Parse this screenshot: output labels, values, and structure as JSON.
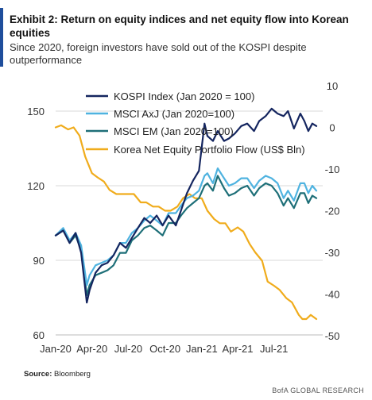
{
  "header": {
    "title": "Exhibit 2: Return on equity indices and net equity flow into Korean equities",
    "subtitle": "Since 2020, foreign investors have sold out of the KOSPI despite outperformance"
  },
  "footer": {
    "source_label": "Source:",
    "source_value": "Bloomberg",
    "brand": "BofA GLOBAL RESEARCH"
  },
  "colors": {
    "kospi": "#14255f",
    "axj": "#4fb3e0",
    "em": "#1e6f78",
    "flow": "#f0ac1c",
    "accent": "#1f4e9c"
  },
  "chart_data": {
    "type": "line",
    "title": "",
    "xlabel": "",
    "ylabel": "",
    "left_axis": {
      "ylim": [
        60,
        150
      ],
      "ticks": [
        60,
        90,
        120,
        150
      ]
    },
    "right_axis": {
      "ylim": [
        -50,
        10
      ],
      "ticks": [
        -50,
        -40,
        -30,
        -20,
        -10,
        0,
        10
      ]
    },
    "x_ticks": [
      "Jan-20",
      "Apr-20",
      "Jul-20",
      "Oct-20",
      "Jan-21",
      "Apr-21",
      "Jul-21"
    ],
    "x_range": [
      "2020-01-01",
      "2021-10-31"
    ],
    "grid": "horizontal",
    "legend_position": "top",
    "series": [
      {
        "name": "KOSPI Index (Jan 2020 = 100)",
        "axis": "left",
        "color_key": "kospi",
        "points": [
          [
            "2020-01-01",
            100
          ],
          [
            "2020-01-20",
            102
          ],
          [
            "2020-02-05",
            97
          ],
          [
            "2020-02-20",
            101
          ],
          [
            "2020-03-05",
            93
          ],
          [
            "2020-03-19",
            73
          ],
          [
            "2020-03-26",
            78
          ],
          [
            "2020-04-10",
            85
          ],
          [
            "2020-04-25",
            88
          ],
          [
            "2020-05-10",
            89
          ],
          [
            "2020-05-25",
            92
          ],
          [
            "2020-06-10",
            97
          ],
          [
            "2020-06-25",
            95
          ],
          [
            "2020-07-10",
            99
          ],
          [
            "2020-07-25",
            103
          ],
          [
            "2020-08-10",
            107
          ],
          [
            "2020-08-25",
            105
          ],
          [
            "2020-09-10",
            108
          ],
          [
            "2020-09-25",
            104
          ],
          [
            "2020-10-10",
            108
          ],
          [
            "2020-10-28",
            104
          ],
          [
            "2020-11-10",
            110
          ],
          [
            "2020-11-25",
            117
          ],
          [
            "2020-12-10",
            122
          ],
          [
            "2020-12-25",
            126
          ],
          [
            "2021-01-08",
            145
          ],
          [
            "2021-01-15",
            140
          ],
          [
            "2021-01-29",
            138
          ],
          [
            "2021-02-10",
            142
          ],
          [
            "2021-02-26",
            138
          ],
          [
            "2021-03-10",
            139
          ],
          [
            "2021-03-25",
            141
          ],
          [
            "2021-04-10",
            144
          ],
          [
            "2021-04-25",
            145
          ],
          [
            "2021-05-12",
            142
          ],
          [
            "2021-05-25",
            146
          ],
          [
            "2021-06-10",
            148
          ],
          [
            "2021-06-25",
            151
          ],
          [
            "2021-07-10",
            149
          ],
          [
            "2021-07-25",
            148
          ],
          [
            "2021-08-05",
            150
          ],
          [
            "2021-08-20",
            143
          ],
          [
            "2021-09-05",
            149
          ],
          [
            "2021-09-15",
            146
          ],
          [
            "2021-09-25",
            142
          ],
          [
            "2021-10-05",
            145
          ],
          [
            "2021-10-15",
            144
          ]
        ]
      },
      {
        "name": "MSCI AxJ (Jan 2020=100)",
        "axis": "left",
        "color_key": "axj",
        "points": [
          [
            "2020-01-01",
            100
          ],
          [
            "2020-01-20",
            103
          ],
          [
            "2020-02-05",
            98
          ],
          [
            "2020-02-20",
            101
          ],
          [
            "2020-03-05",
            96
          ],
          [
            "2020-03-19",
            80
          ],
          [
            "2020-03-26",
            84
          ],
          [
            "2020-04-10",
            88
          ],
          [
            "2020-04-25",
            89
          ],
          [
            "2020-05-10",
            90
          ],
          [
            "2020-05-25",
            92
          ],
          [
            "2020-06-10",
            97
          ],
          [
            "2020-06-25",
            97
          ],
          [
            "2020-07-10",
            101
          ],
          [
            "2020-07-25",
            103
          ],
          [
            "2020-08-10",
            106
          ],
          [
            "2020-08-25",
            108
          ],
          [
            "2020-09-10",
            106
          ],
          [
            "2020-09-25",
            104
          ],
          [
            "2020-10-10",
            109
          ],
          [
            "2020-10-28",
            109
          ],
          [
            "2020-11-10",
            112
          ],
          [
            "2020-11-25",
            115
          ],
          [
            "2020-12-10",
            116
          ],
          [
            "2020-12-25",
            118
          ],
          [
            "2021-01-08",
            124
          ],
          [
            "2021-01-15",
            125
          ],
          [
            "2021-01-29",
            121
          ],
          [
            "2021-02-10",
            127
          ],
          [
            "2021-02-26",
            123
          ],
          [
            "2021-03-10",
            120
          ],
          [
            "2021-03-25",
            121
          ],
          [
            "2021-04-10",
            123
          ],
          [
            "2021-04-25",
            123
          ],
          [
            "2021-05-12",
            119
          ],
          [
            "2021-05-25",
            122
          ],
          [
            "2021-06-10",
            124
          ],
          [
            "2021-06-25",
            123
          ],
          [
            "2021-07-10",
            121
          ],
          [
            "2021-07-25",
            115
          ],
          [
            "2021-08-05",
            118
          ],
          [
            "2021-08-20",
            114
          ],
          [
            "2021-09-05",
            121
          ],
          [
            "2021-09-15",
            121
          ],
          [
            "2021-09-25",
            117
          ],
          [
            "2021-10-05",
            120
          ],
          [
            "2021-10-15",
            118
          ]
        ]
      },
      {
        "name": "MSCI EM (Jan 2020=100)",
        "axis": "left",
        "color_key": "em",
        "points": [
          [
            "2020-01-01",
            100
          ],
          [
            "2020-01-20",
            102
          ],
          [
            "2020-02-05",
            97
          ],
          [
            "2020-02-20",
            100
          ],
          [
            "2020-03-05",
            94
          ],
          [
            "2020-03-19",
            76
          ],
          [
            "2020-03-26",
            80
          ],
          [
            "2020-04-10",
            84
          ],
          [
            "2020-04-25",
            85
          ],
          [
            "2020-05-10",
            86
          ],
          [
            "2020-05-25",
            88
          ],
          [
            "2020-06-10",
            93
          ],
          [
            "2020-06-25",
            93
          ],
          [
            "2020-07-10",
            98
          ],
          [
            "2020-07-25",
            100
          ],
          [
            "2020-08-10",
            103
          ],
          [
            "2020-08-25",
            104
          ],
          [
            "2020-09-10",
            102
          ],
          [
            "2020-09-25",
            100
          ],
          [
            "2020-10-10",
            105
          ],
          [
            "2020-10-28",
            105
          ],
          [
            "2020-11-10",
            108
          ],
          [
            "2020-11-25",
            111
          ],
          [
            "2020-12-10",
            113
          ],
          [
            "2020-12-25",
            115
          ],
          [
            "2021-01-08",
            120
          ],
          [
            "2021-01-15",
            121
          ],
          [
            "2021-01-29",
            118
          ],
          [
            "2021-02-10",
            124
          ],
          [
            "2021-02-26",
            119
          ],
          [
            "2021-03-10",
            116
          ],
          [
            "2021-03-25",
            117
          ],
          [
            "2021-04-10",
            119
          ],
          [
            "2021-04-25",
            120
          ],
          [
            "2021-05-12",
            116
          ],
          [
            "2021-05-25",
            119
          ],
          [
            "2021-06-10",
            121
          ],
          [
            "2021-06-25",
            120
          ],
          [
            "2021-07-10",
            117
          ],
          [
            "2021-07-25",
            112
          ],
          [
            "2021-08-05",
            115
          ],
          [
            "2021-08-20",
            111
          ],
          [
            "2021-09-05",
            117
          ],
          [
            "2021-09-15",
            117
          ],
          [
            "2021-09-25",
            113
          ],
          [
            "2021-10-05",
            116
          ],
          [
            "2021-10-15",
            115
          ]
        ]
      },
      {
        "name": "Korea Net Equity Portfolio Flow (US$ Bln)",
        "axis": "right",
        "color_key": "flow",
        "points": [
          [
            "2020-01-01",
            0
          ],
          [
            "2020-01-15",
            0.5
          ],
          [
            "2020-02-01",
            -0.5
          ],
          [
            "2020-02-15",
            0
          ],
          [
            "2020-03-01",
            -2
          ],
          [
            "2020-03-15",
            -7
          ],
          [
            "2020-04-01",
            -11
          ],
          [
            "2020-04-15",
            -12
          ],
          [
            "2020-05-01",
            -13
          ],
          [
            "2020-05-15",
            -15
          ],
          [
            "2020-06-01",
            -16
          ],
          [
            "2020-06-15",
            -16
          ],
          [
            "2020-07-01",
            -16
          ],
          [
            "2020-07-15",
            -16
          ],
          [
            "2020-08-01",
            -18
          ],
          [
            "2020-08-15",
            -18
          ],
          [
            "2020-09-01",
            -19
          ],
          [
            "2020-09-15",
            -19
          ],
          [
            "2020-10-01",
            -20
          ],
          [
            "2020-10-15",
            -20
          ],
          [
            "2020-11-01",
            -19
          ],
          [
            "2020-11-15",
            -17
          ],
          [
            "2020-12-01",
            -16
          ],
          [
            "2020-12-15",
            -17
          ],
          [
            "2021-01-01",
            -17
          ],
          [
            "2021-01-15",
            -20
          ],
          [
            "2021-02-01",
            -22
          ],
          [
            "2021-02-15",
            -23
          ],
          [
            "2021-03-01",
            -23
          ],
          [
            "2021-03-15",
            -25
          ],
          [
            "2021-04-01",
            -24
          ],
          [
            "2021-04-15",
            -25
          ],
          [
            "2021-05-01",
            -28
          ],
          [
            "2021-05-15",
            -30
          ],
          [
            "2021-06-01",
            -32
          ],
          [
            "2021-06-15",
            -37
          ],
          [
            "2021-07-01",
            -38
          ],
          [
            "2021-07-15",
            -39
          ],
          [
            "2021-08-01",
            -41
          ],
          [
            "2021-08-15",
            -42
          ],
          [
            "2021-09-01",
            -45
          ],
          [
            "2021-09-10",
            -46
          ],
          [
            "2021-09-20",
            -46
          ],
          [
            "2021-10-01",
            -45
          ],
          [
            "2021-10-15",
            -46
          ]
        ]
      }
    ]
  }
}
